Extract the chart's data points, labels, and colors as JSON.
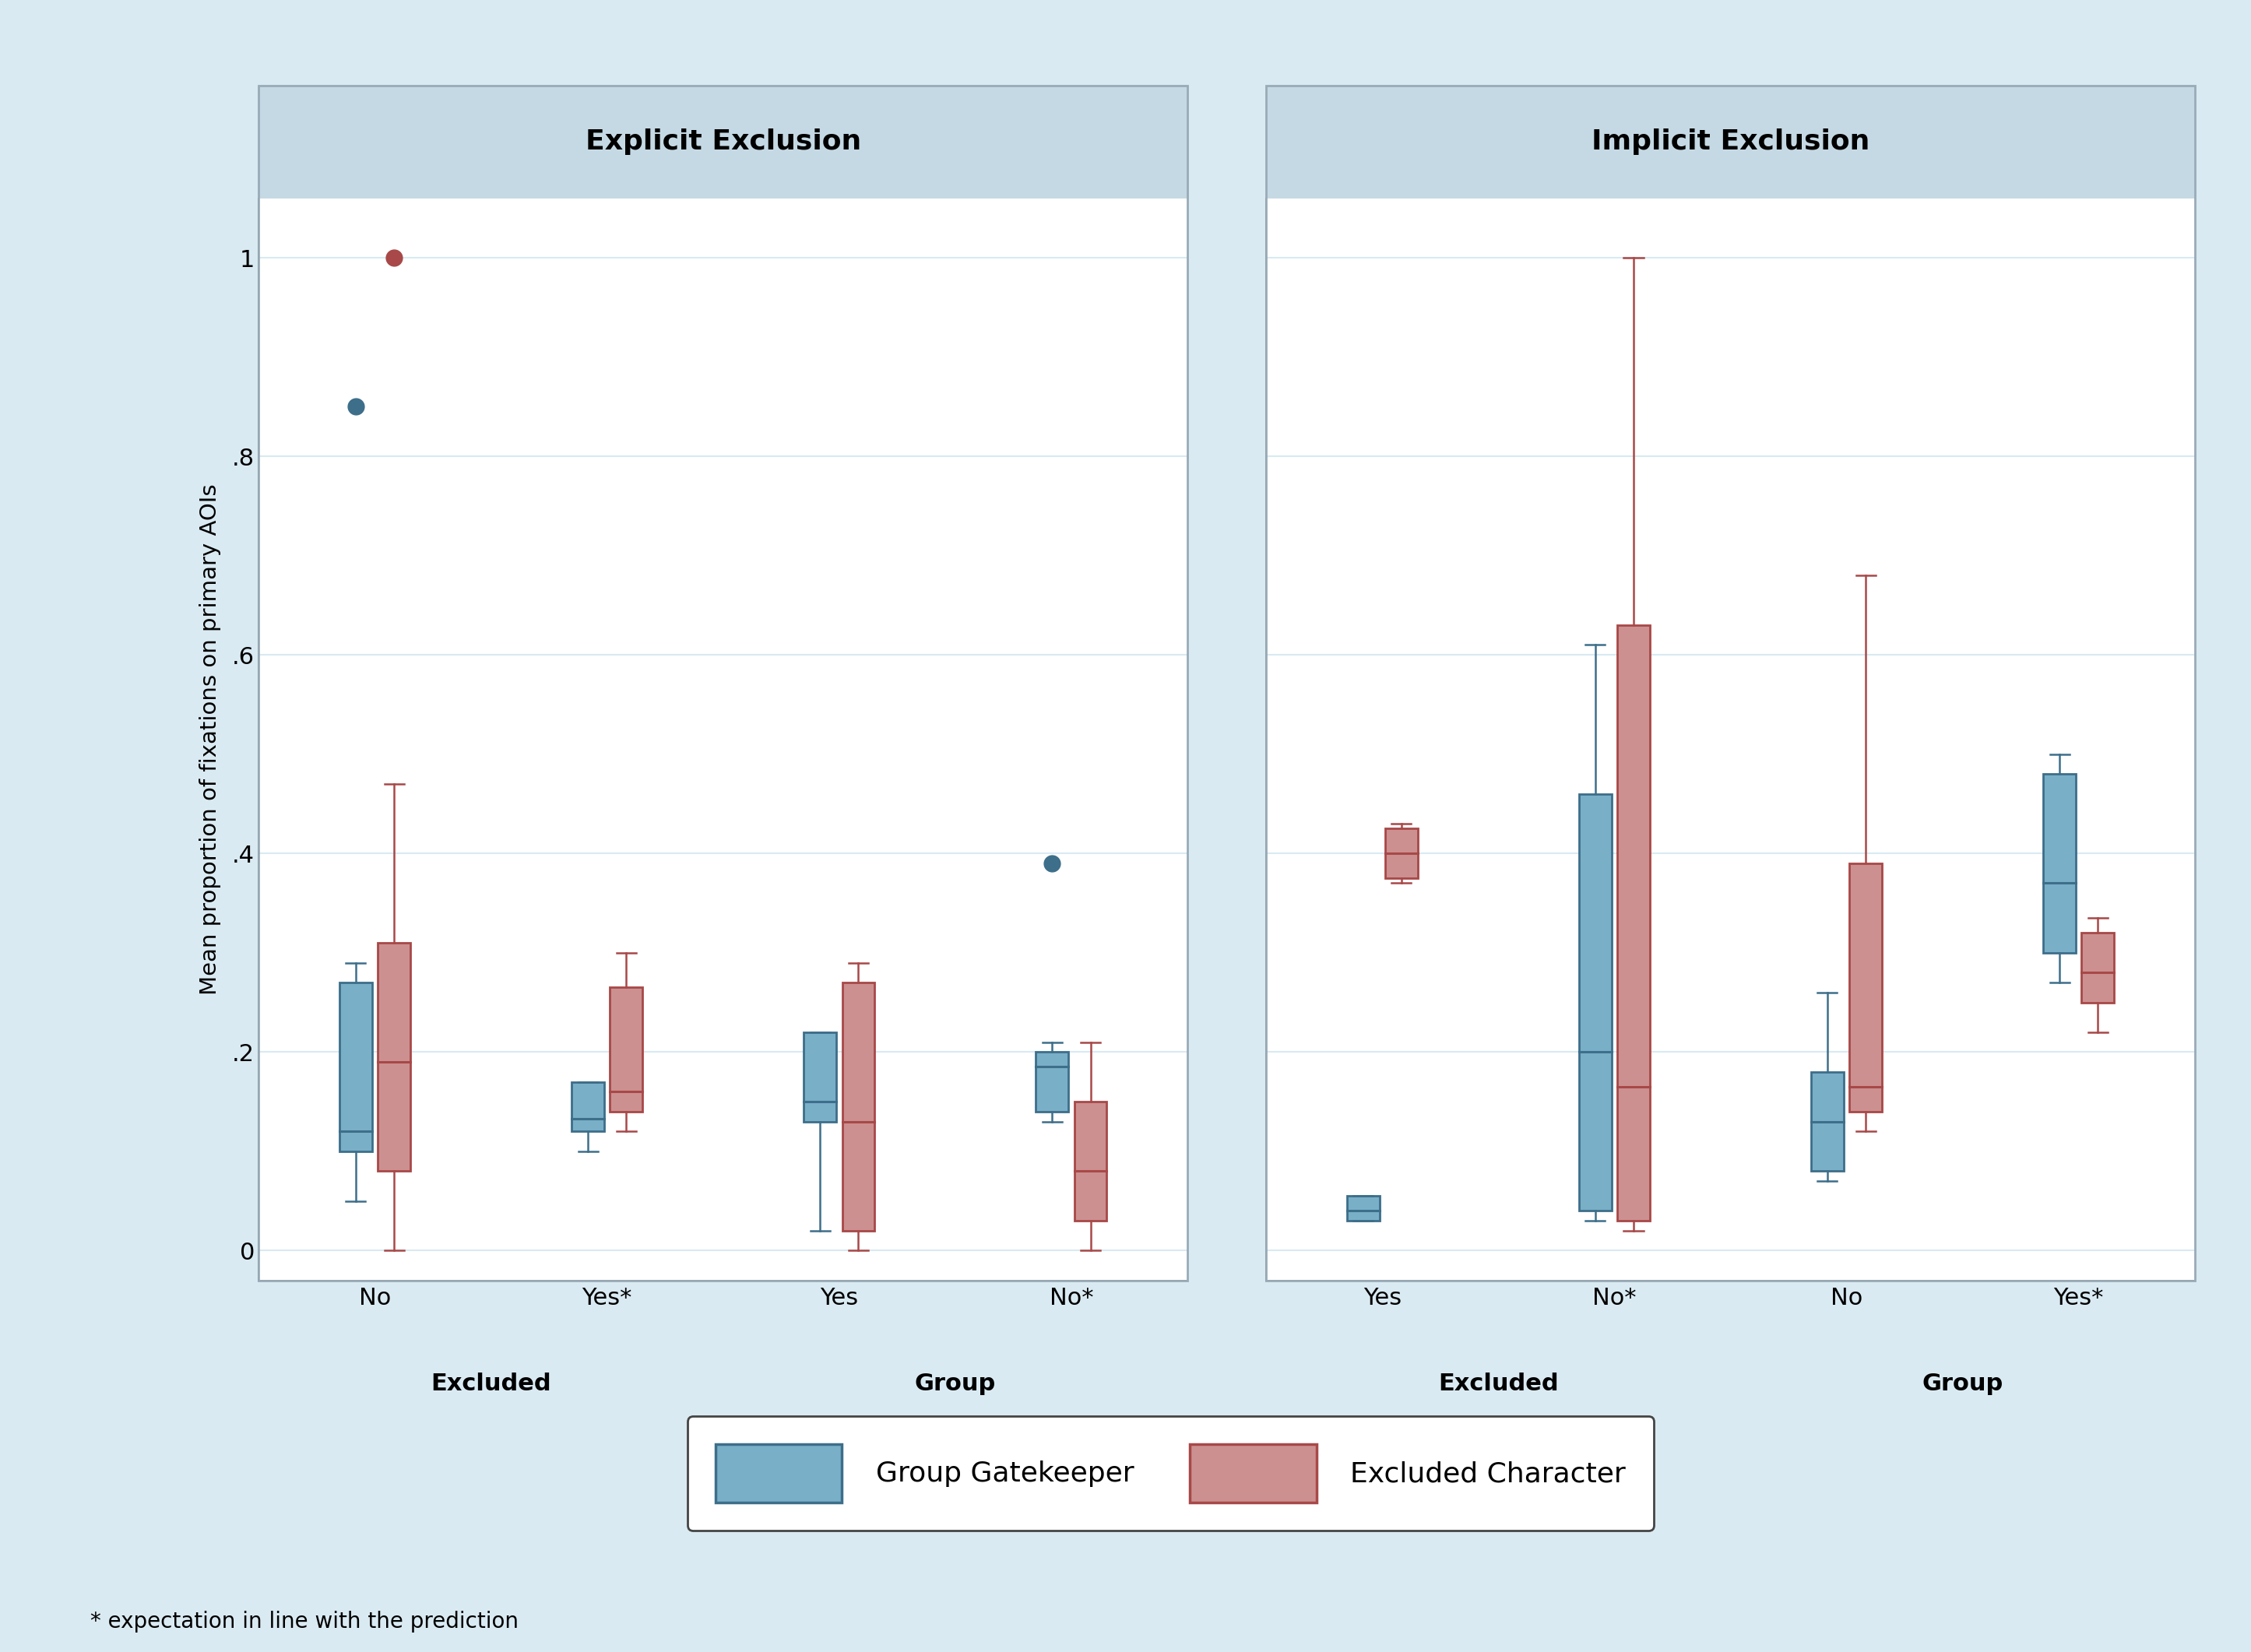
{
  "fig_bg": "#daeaf2",
  "panel_bg": "#ffffff",
  "title_bg": "#c5d9e4",
  "outer_border_color": "#aabbc8",
  "gk_color": "#3d6e8a",
  "ec_color": "#a84848",
  "gk_face": "#7aafc8",
  "ec_face": "#cc9090",
  "panel_titles": [
    "Explicit Exclusion",
    "Implicit Exclusion"
  ],
  "ylabel": "Mean proportion of fixations on primary AOIs",
  "yticks": [
    0.0,
    0.2,
    0.4,
    0.6,
    0.8,
    1.0
  ],
  "ytick_labels": [
    "0",
    ".2",
    ".4",
    ".6",
    ".8",
    "1"
  ],
  "ylim": [
    -0.03,
    1.06
  ],
  "legend_labels": [
    "Group Gatekeeper",
    "Excluded Character"
  ],
  "footnote": "* expectation in line with the prediction",
  "panels": [
    {
      "title": "Explicit Exclusion",
      "groups": [
        {
          "label": "No",
          "group_label": "Excluded",
          "gk": {
            "q1": 0.1,
            "med": 0.12,
            "q3": 0.27,
            "wlo": 0.05,
            "whi": 0.29,
            "outliers": [
              0.85
            ]
          },
          "ec": {
            "q1": 0.08,
            "med": 0.19,
            "q3": 0.31,
            "wlo": 0.0,
            "whi": 0.47,
            "outliers": [
              1.0
            ]
          }
        },
        {
          "label": "Yes*",
          "group_label": "Excluded",
          "gk": {
            "q1": 0.12,
            "med": 0.133,
            "q3": 0.17,
            "wlo": 0.1,
            "whi": 0.17,
            "outliers": []
          },
          "ec": {
            "q1": 0.14,
            "med": 0.16,
            "q3": 0.265,
            "wlo": 0.12,
            "whi": 0.3,
            "outliers": []
          }
        },
        {
          "label": "Yes",
          "group_label": "Group",
          "gk": {
            "q1": 0.13,
            "med": 0.15,
            "q3": 0.22,
            "wlo": 0.02,
            "whi": 0.22,
            "outliers": []
          },
          "ec": {
            "q1": 0.02,
            "med": 0.13,
            "q3": 0.27,
            "wlo": 0.0,
            "whi": 0.29,
            "outliers": []
          }
        },
        {
          "label": "No*",
          "group_label": "Group",
          "gk": {
            "q1": 0.14,
            "med": 0.185,
            "q3": 0.2,
            "wlo": 0.13,
            "whi": 0.21,
            "outliers": [
              0.39
            ]
          },
          "ec": {
            "q1": 0.03,
            "med": 0.08,
            "q3": 0.15,
            "wlo": 0.0,
            "whi": 0.21,
            "outliers": []
          }
        }
      ]
    },
    {
      "title": "Implicit Exclusion",
      "groups": [
        {
          "label": "Yes",
          "group_label": "Excluded",
          "gk": {
            "q1": 0.03,
            "med": 0.04,
            "q3": 0.055,
            "wlo": 0.03,
            "whi": 0.055,
            "outliers": []
          },
          "ec": {
            "q1": 0.375,
            "med": 0.4,
            "q3": 0.425,
            "wlo": 0.37,
            "whi": 0.43,
            "outliers": []
          }
        },
        {
          "label": "No*",
          "group_label": "Excluded",
          "gk": {
            "q1": 0.04,
            "med": 0.2,
            "q3": 0.46,
            "wlo": 0.03,
            "whi": 0.61,
            "outliers": []
          },
          "ec": {
            "q1": 0.03,
            "med": 0.165,
            "q3": 0.63,
            "wlo": 0.02,
            "whi": 1.0,
            "outliers": []
          }
        },
        {
          "label": "No",
          "group_label": "Group",
          "gk": {
            "q1": 0.08,
            "med": 0.13,
            "q3": 0.18,
            "wlo": 0.07,
            "whi": 0.26,
            "outliers": []
          },
          "ec": {
            "q1": 0.14,
            "med": 0.165,
            "q3": 0.39,
            "wlo": 0.12,
            "whi": 0.68,
            "outliers": []
          }
        },
        {
          "label": "Yes*",
          "group_label": "Group",
          "gk": {
            "q1": 0.3,
            "med": 0.37,
            "q3": 0.48,
            "wlo": 0.27,
            "whi": 0.5,
            "outliers": []
          },
          "ec": {
            "q1": 0.25,
            "med": 0.28,
            "q3": 0.32,
            "wlo": 0.22,
            "whi": 0.335,
            "outliers": []
          }
        }
      ]
    }
  ]
}
